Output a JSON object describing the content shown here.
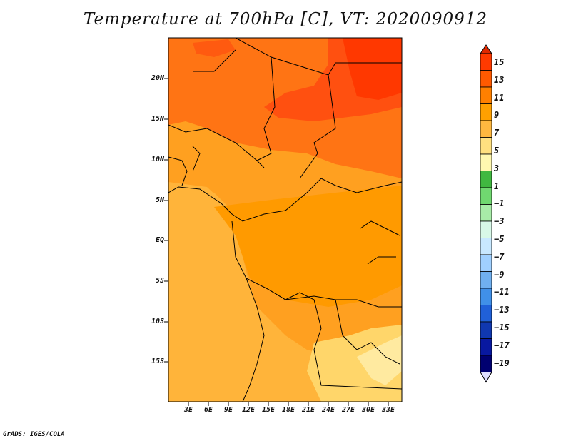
{
  "title": "Temperature at 700hPa [C], VT: 2020090912",
  "credit": "GrADS: IGES/COLA",
  "lat_labels": [
    "20N",
    "15N",
    "10N",
    "5N",
    "EQ",
    "5S",
    "10S",
    "15S"
  ],
  "lon_labels": [
    "3E",
    "6E",
    "9E",
    "12E",
    "15E",
    "18E",
    "21E",
    "24E",
    "27E",
    "30E",
    "33E"
  ],
  "colorbar": {
    "levels": [
      "15",
      "13",
      "11",
      "9",
      "7",
      "5",
      "3",
      "1",
      "−1",
      "−3",
      "−5",
      "−7",
      "−9",
      "−11",
      "−13",
      "−15",
      "−17",
      "−19"
    ],
    "colors": [
      "#ff3a00",
      "#ff5a00",
      "#ff8000",
      "#ffa000",
      "#ffb840",
      "#ffe080",
      "#fff8b0",
      "#40b840",
      "#70d870",
      "#a8eca8",
      "#d8f8e8",
      "#c8e8ff",
      "#a0d0ff",
      "#70b0f0",
      "#4090e8",
      "#2060d8",
      "#1038b0",
      "#0818a0",
      "#000070",
      "#d8d8ff"
    ],
    "top_color": "#e02800",
    "bottom_color": "#e0e0ff"
  },
  "field_colors": {
    "c13": "#ff3a00",
    "c11": "#ff6010",
    "c9": "#ff9000",
    "c7": "#ffaa20",
    "c5": "#ffc040",
    "c3": "#ffe080"
  }
}
